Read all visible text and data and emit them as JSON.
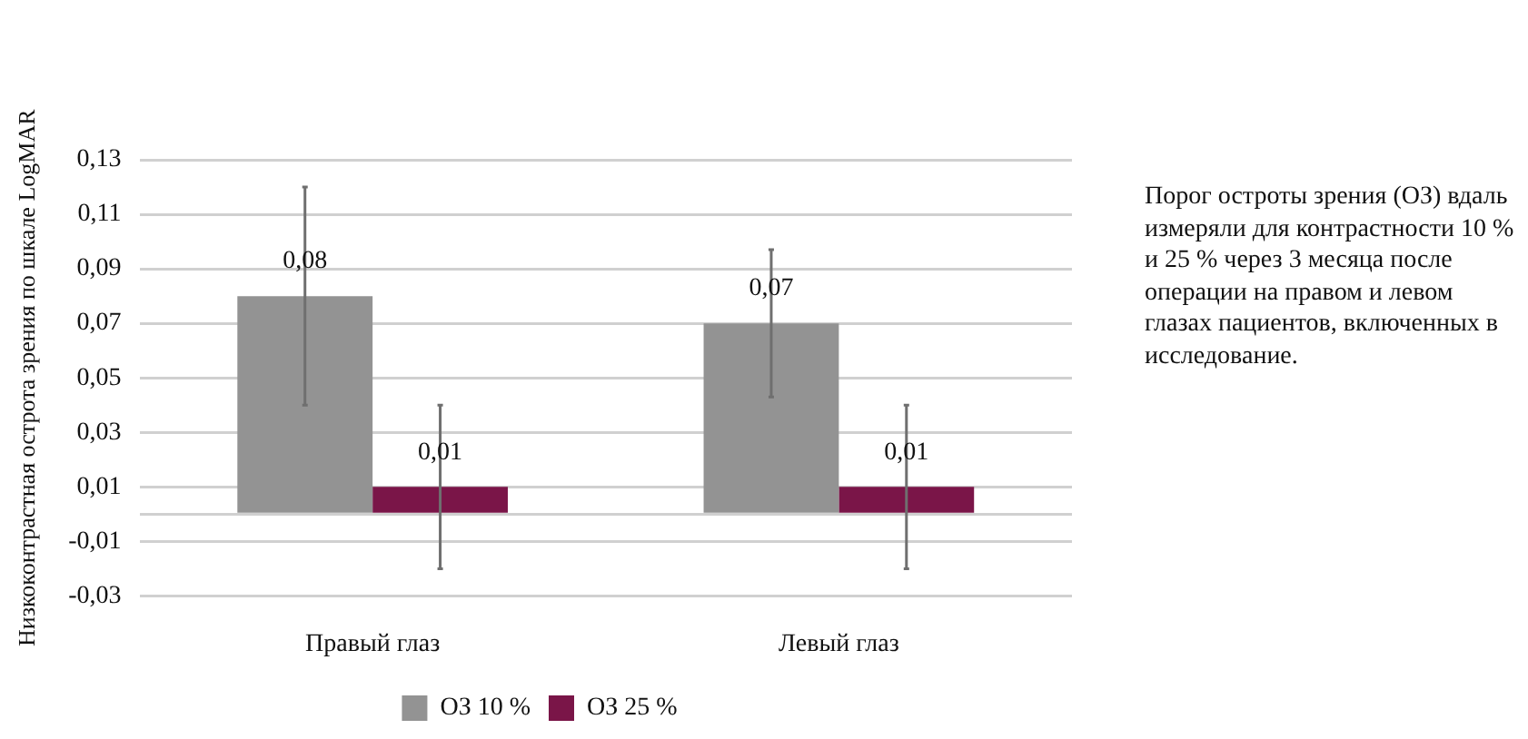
{
  "chart_data": {
    "type": "bar",
    "ylabel": "Низкоконтрастная острота зрения по шкале LogMAR",
    "categories": [
      "Правый глаз",
      "Левый глаз"
    ],
    "series": [
      {
        "name": "ОЗ 10 %",
        "color": "#939393",
        "values": [
          0.08,
          0.07
        ],
        "errors": [
          [
            0.04,
            0.12
          ],
          [
            0.043,
            0.097
          ]
        ],
        "value_labels": [
          "0,08",
          "0,07"
        ]
      },
      {
        "name": "ОЗ 25 %",
        "color": "#7a1548",
        "values": [
          0.01,
          0.01
        ],
        "errors": [
          [
            -0.02,
            0.04
          ],
          [
            -0.02,
            0.04
          ]
        ],
        "value_labels": [
          "0,01",
          "0,01"
        ]
      }
    ],
    "ylim": [
      -0.03,
      0.13
    ],
    "yticks": [
      {
        "value": -0.03,
        "label": "-0,03"
      },
      {
        "value": -0.01,
        "label": "-0,01"
      },
      {
        "value": 0,
        "label": null
      },
      {
        "value": 0.01,
        "label": "0,01"
      },
      {
        "value": 0.03,
        "label": "0,03"
      },
      {
        "value": 0.05,
        "label": "0,05"
      },
      {
        "value": 0.07,
        "label": "0,07"
      },
      {
        "value": 0.09,
        "label": "0,09"
      },
      {
        "value": 0.11,
        "label": "0,11"
      },
      {
        "value": 0.13,
        "label": "0,13"
      }
    ],
    "grid": "y",
    "legend": "bottom",
    "annotations": [
      "Порог остроты зрения (ОЗ) вдаль измеряли для контрастности 10 % и 25 % через 3 месяца после операции на правом и левом глазах пациентов, включенных в исследование."
    ]
  }
}
